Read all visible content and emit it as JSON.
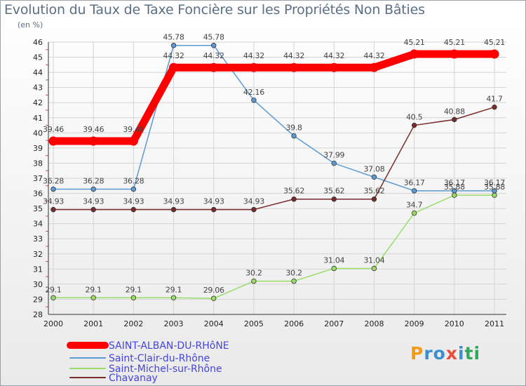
{
  "chart_data": {
    "type": "line",
    "title": "Evolution du Taux de Taxe Foncière sur les Propriétés Non Bâties",
    "subtitle": "(en %)",
    "x": [
      "2000",
      "2001",
      "2002",
      "2003",
      "2004",
      "2005",
      "2006",
      "2007",
      "2008",
      "2009",
      "2010",
      "2011"
    ],
    "ylim": [
      28,
      46
    ],
    "yticks": [
      "28",
      "29",
      "30",
      "31",
      "32",
      "33",
      "34",
      "35",
      "36",
      "37",
      "38",
      "39",
      "40",
      "41",
      "42",
      "43",
      "44",
      "45",
      "46"
    ],
    "grid": true,
    "legend_position": "bottom-left",
    "series": [
      {
        "name": "SAINT-ALBAN-DU-RHôNE",
        "color": "#ff0000",
        "legend_color": "#4444dd",
        "values": [
          39.46,
          39.46,
          39.46,
          44.32,
          44.32,
          44.32,
          44.32,
          44.32,
          44.32,
          45.21,
          45.21,
          45.21
        ],
        "labels": [
          "39.46",
          "39.46",
          "39.46",
          "44.32",
          "44.32",
          "44.32",
          "44.32",
          "44.32",
          "44.32",
          "45.21",
          "45.21",
          "45.21"
        ]
      },
      {
        "name": "Saint-Clair-du-Rhône",
        "color": "#5b9bd5",
        "legend_color": "#4444dd",
        "values": [
          36.28,
          36.28,
          36.28,
          45.78,
          45.78,
          42.16,
          39.8,
          37.99,
          37.08,
          36.17,
          36.17,
          36.17
        ],
        "labels": [
          "36.28",
          "36.28",
          "36.28",
          "45.78",
          "45.78",
          "42.16",
          "39.8",
          "37.99",
          "37.08",
          "36.17",
          "36.17",
          "36.17"
        ]
      },
      {
        "name": "Saint-Michel-sur-Rhône",
        "color": "#99dd66",
        "legend_color": "#4444dd",
        "values": [
          29.1,
          29.1,
          29.1,
          29.1,
          29.06,
          30.2,
          30.2,
          31.04,
          31.04,
          34.7,
          35.88,
          35.88
        ],
        "labels": [
          "29.1",
          "29.1",
          "29.1",
          "29.1",
          "29.06",
          "30.2",
          "30.2",
          "31.04",
          "31.04",
          "34.7",
          "35.88",
          "35.88"
        ]
      },
      {
        "name": "Chavanay",
        "color": "#7a2a2a",
        "legend_color": "#4444dd",
        "values": [
          34.93,
          34.93,
          34.93,
          34.93,
          34.93,
          34.93,
          35.62,
          35.62,
          35.62,
          40.5,
          40.88,
          41.7
        ],
        "labels": [
          "34.93",
          "34.93",
          "34.93",
          "34.93",
          "34.93",
          "34.93",
          "35.62",
          "35.62",
          "35.62",
          "40.5",
          "40.88",
          "41.7"
        ]
      }
    ]
  },
  "logo": {
    "text": "Proxiti"
  }
}
